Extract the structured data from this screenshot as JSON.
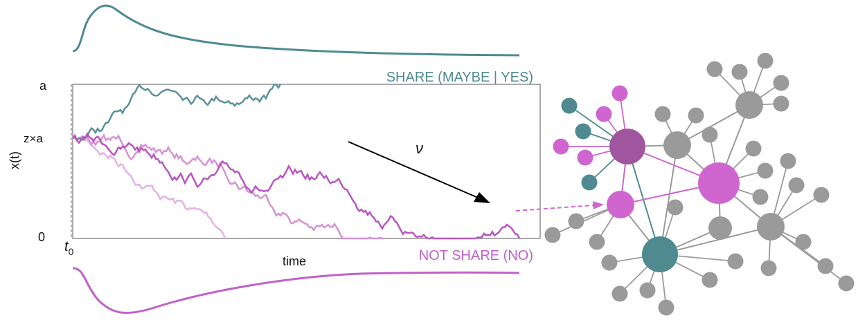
{
  "labels": {
    "share": "SHARE (MAYBE | YES)",
    "not_share": "NOT SHARE (NO)",
    "upper": "a",
    "start": "z×a",
    "lower": "0",
    "y_axis": "x(t)",
    "t0": {
      "base": "t",
      "sub": "0"
    },
    "x_axis": "time",
    "drift": "ν"
  }
}
